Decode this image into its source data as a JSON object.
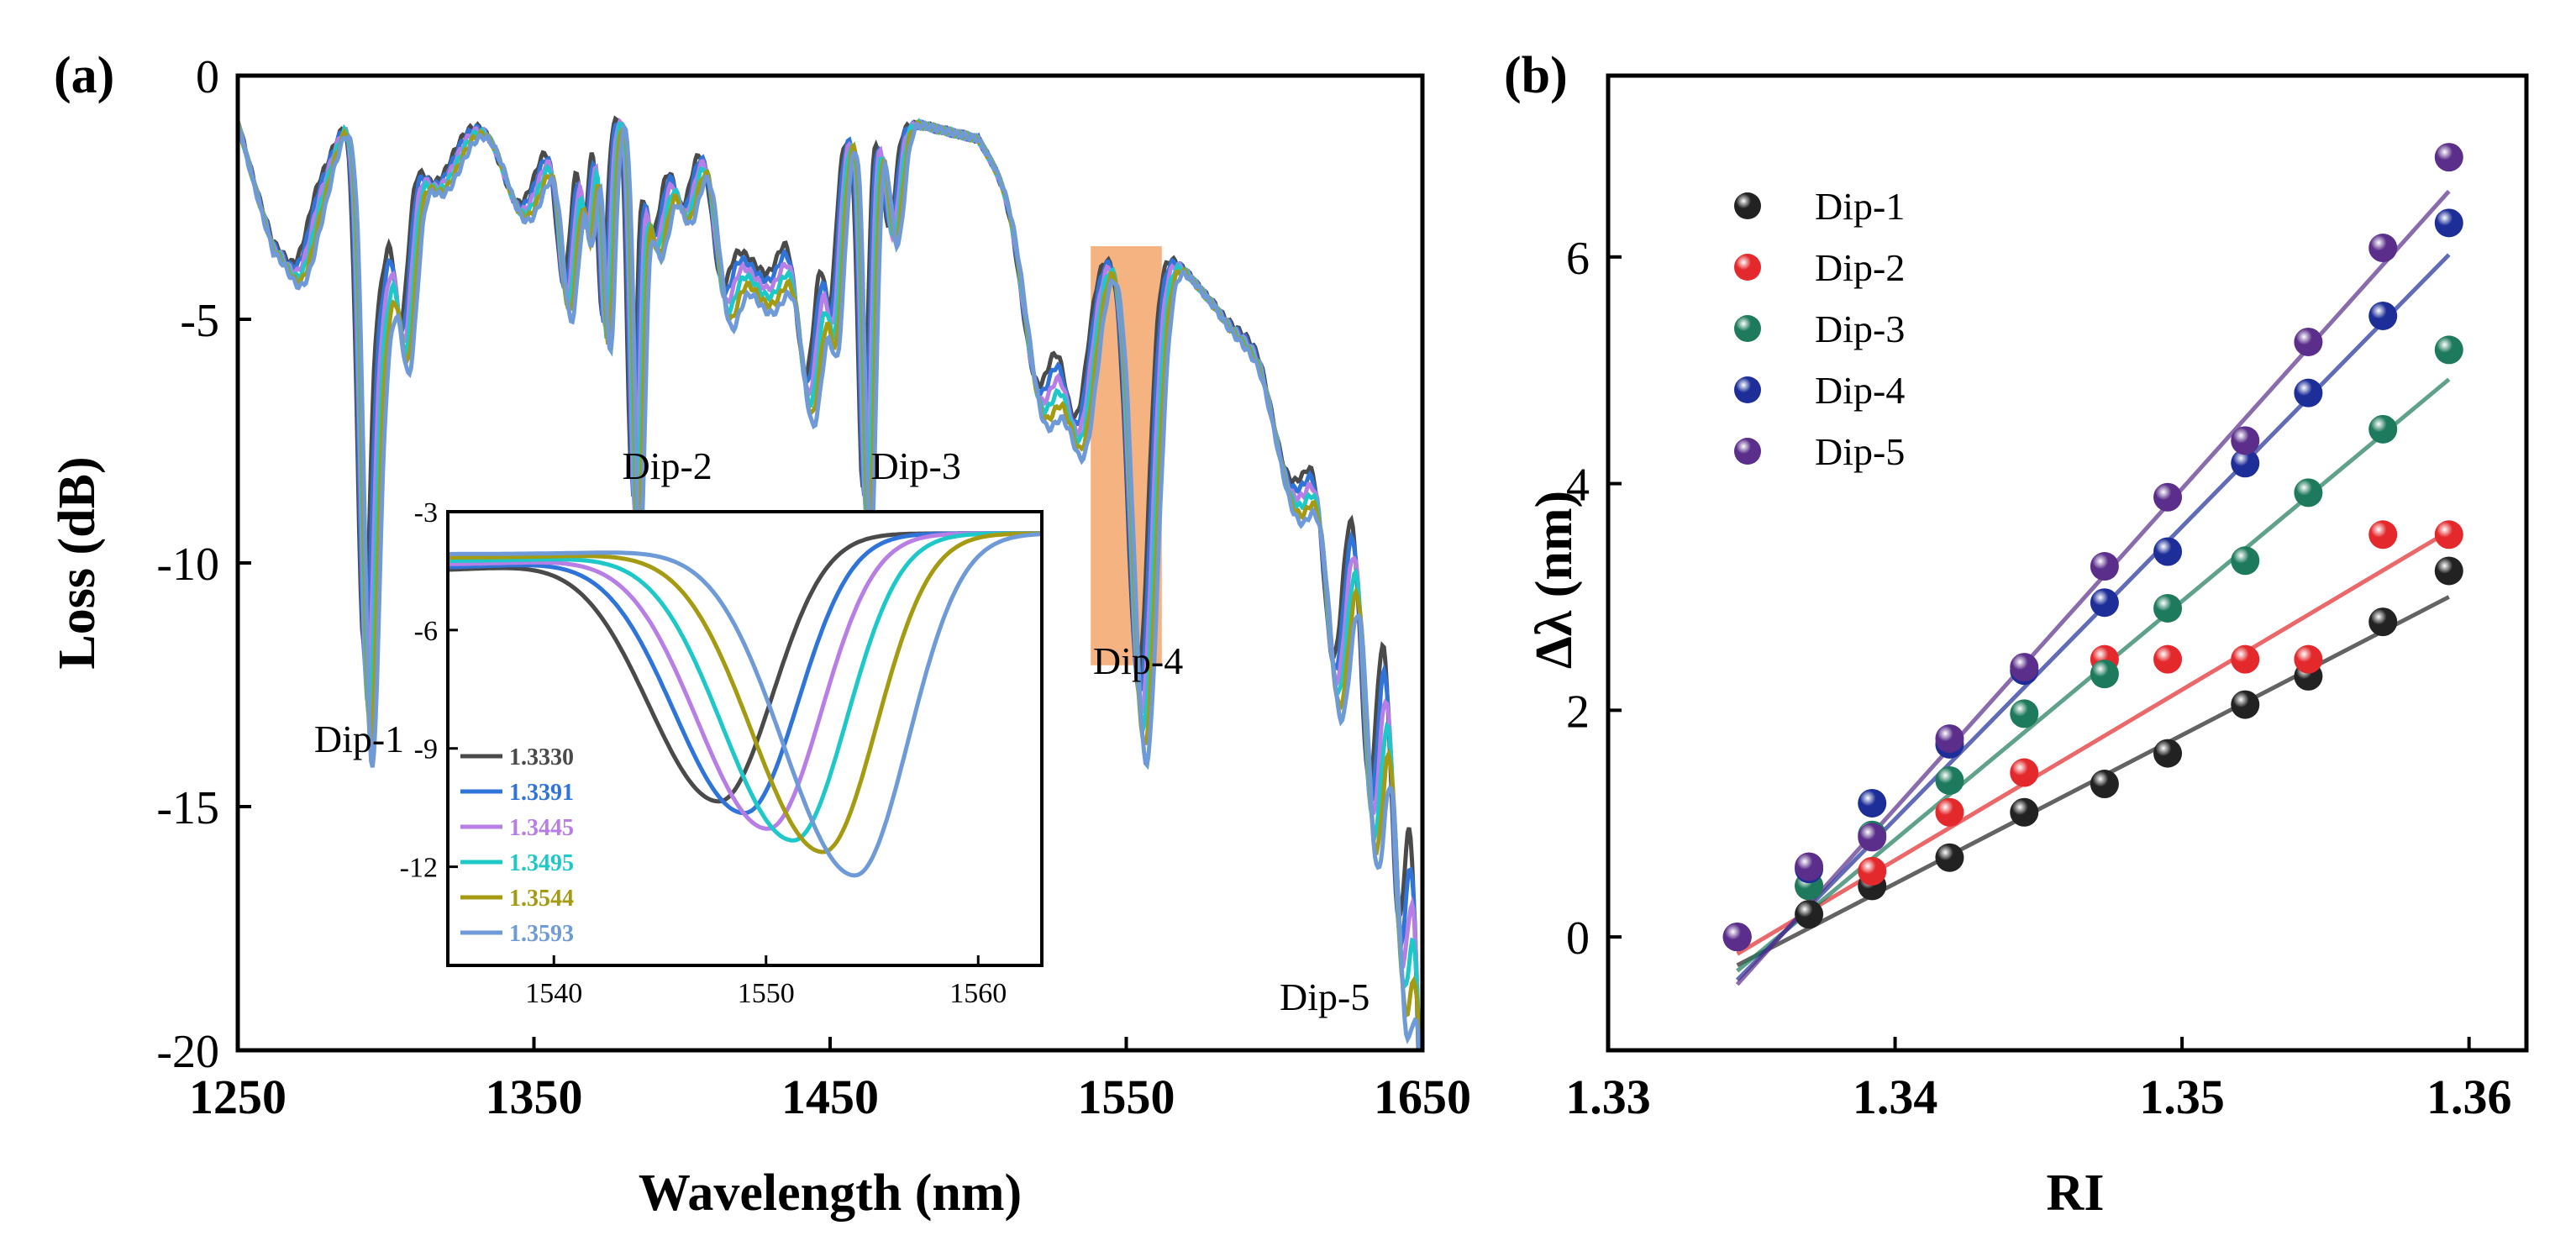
{
  "chart_data": [
    {
      "panel": "(a)",
      "type": "line",
      "xlabel": "Wavelength (nm)",
      "ylabel": "Loss (dB)",
      "xlim": [
        1250,
        1650
      ],
      "ylim": [
        -20,
        0
      ],
      "xticks": [
        "1250",
        "1350",
        "1450",
        "1550",
        "1650"
      ],
      "yticks": [
        "0",
        "-5",
        "-10",
        "-15",
        "-20"
      ],
      "highlight_range_x": [
        1538,
        1562
      ],
      "annotations": [
        {
          "text": "Dip-1",
          "x": 1291,
          "y": -13.6
        },
        {
          "text": "Dip-2",
          "x": 1395,
          "y": -8.0
        },
        {
          "text": "Dip-3",
          "x": 1479,
          "y": -8.0
        },
        {
          "text": "Dip-4",
          "x": 1554,
          "y": -12.0
        },
        {
          "text": "Dip-5",
          "x": 1617,
          "y": -18.9
        }
      ],
      "series": [
        {
          "name": "1.3330",
          "color": "#4a4a4a"
        },
        {
          "name": "1.3391",
          "color": "#2f74d8"
        },
        {
          "name": "1.3445",
          "color": "#b77ee6"
        },
        {
          "name": "1.3495",
          "color": "#1fc8c8"
        },
        {
          "name": "1.3544",
          "color": "#a49b12"
        },
        {
          "name": "1.3593",
          "color": "#6f9ad8"
        }
      ],
      "inset": {
        "type": "line",
        "xlim": [
          1535,
          1563
        ],
        "ylim": [
          -14.5,
          -3
        ],
        "xticks": [
          "1540",
          "1550",
          "1560"
        ],
        "yticks": [
          "-3",
          "-6",
          "-9",
          "-12"
        ],
        "series": [
          {
            "name": "1.3330",
            "color": "#4a4a4a",
            "dip_x": 1547.8,
            "dip_y": -10.3
          },
          {
            "name": "1.3391",
            "color": "#2f74d8",
            "dip_x": 1549.0,
            "dip_y": -10.6
          },
          {
            "name": "1.3445",
            "color": "#b77ee6",
            "dip_x": 1550.1,
            "dip_y": -11.0
          },
          {
            "name": "1.3495",
            "color": "#1fc8c8",
            "dip_x": 1551.3,
            "dip_y": -11.3
          },
          {
            "name": "1.3544",
            "color": "#a49b12",
            "dip_x": 1552.7,
            "dip_y": -11.6
          },
          {
            "name": "1.3593",
            "color": "#6f9ad8",
            "dip_x": 1554.2,
            "dip_y": -12.2
          }
        ]
      }
    },
    {
      "panel": "(b)",
      "type": "scatter",
      "xlabel": "RI",
      "ylabel": "Δλ (nm)",
      "xlim": [
        1.33,
        1.362
      ],
      "ylim": [
        -1,
        7.6
      ],
      "xticks": [
        "1.33",
        "1.34",
        "1.35",
        "1.36"
      ],
      "yticks": [
        "0",
        "2",
        "4",
        "6"
      ],
      "x": [
        1.3345,
        1.337,
        1.3392,
        1.3419,
        1.3445,
        1.3473,
        1.3495,
        1.3522,
        1.3544,
        1.357,
        1.3593
      ],
      "series": [
        {
          "name": "Dip-1",
          "color": "#222222",
          "values": [
            0,
            0.2,
            0.45,
            0.7,
            1.1,
            1.35,
            1.62,
            2.05,
            2.3,
            2.78,
            3.23
          ],
          "fit": [
            -0.25,
            3.0
          ]
        },
        {
          "name": "Dip-2",
          "color": "#e3292c",
          "values": [
            0,
            0.45,
            0.58,
            1.1,
            1.45,
            2.45,
            2.45,
            2.45,
            2.45,
            3.55,
            3.55
          ],
          "fit": [
            -0.15,
            3.58
          ]
        },
        {
          "name": "Dip-3",
          "color": "#1e7a5c",
          "values": [
            0,
            0.45,
            0.9,
            1.38,
            1.97,
            2.32,
            2.9,
            3.32,
            3.92,
            4.48,
            5.18
          ],
          "fit": [
            -0.3,
            4.92
          ]
        },
        {
          "name": "Dip-4",
          "color": "#1d2e99",
          "values": [
            0,
            0.6,
            1.18,
            1.7,
            2.35,
            2.95,
            3.4,
            4.18,
            4.8,
            5.48,
            6.3
          ],
          "fit": [
            -0.38,
            6.02
          ]
        },
        {
          "name": "Dip-5",
          "color": "#5a2e8a",
          "values": [
            0,
            0.62,
            0.88,
            1.75,
            2.38,
            3.27,
            3.88,
            4.38,
            5.25,
            6.08,
            6.88
          ],
          "fit": [
            -0.42,
            6.58
          ]
        }
      ]
    }
  ]
}
